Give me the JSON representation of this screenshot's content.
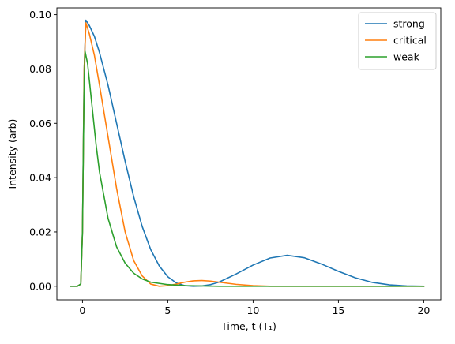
{
  "chart_data": {
    "type": "line",
    "xlabel": "Time, t (T₁)",
    "ylabel": "Intensity (arb)",
    "xlim": [
      -1.5,
      21.0
    ],
    "ylim": [
      -0.005,
      0.1025
    ],
    "xticks": [
      0,
      5,
      10,
      15,
      20
    ],
    "xtick_labels": [
      "0",
      "5",
      "10",
      "15",
      "20"
    ],
    "yticks": [
      0.0,
      0.02,
      0.04,
      0.06,
      0.08,
      0.1
    ],
    "ytick_labels": [
      "0.00",
      "0.02",
      "0.04",
      "0.06",
      "0.08",
      "0.10"
    ],
    "grid": false,
    "legend_position": "top-right",
    "series": [
      {
        "name": "strong",
        "color": "#1f77b4",
        "points": [
          [
            -0.7,
            0.0
          ],
          [
            -0.3,
            0.0
          ],
          [
            -0.1,
            0.0008
          ],
          [
            0.0,
            0.02
          ],
          [
            0.05,
            0.05
          ],
          [
            0.1,
            0.08
          ],
          [
            0.2,
            0.098
          ],
          [
            0.4,
            0.096
          ],
          [
            0.7,
            0.092
          ],
          [
            1.0,
            0.086
          ],
          [
            1.5,
            0.074
          ],
          [
            2.0,
            0.06
          ],
          [
            2.5,
            0.046
          ],
          [
            3.0,
            0.033
          ],
          [
            3.5,
            0.022
          ],
          [
            4.0,
            0.0135
          ],
          [
            4.5,
            0.0075
          ],
          [
            5.0,
            0.0035
          ],
          [
            5.5,
            0.0012
          ],
          [
            6.0,
            0.0002
          ],
          [
            6.5,
            0.0
          ],
          [
            7.0,
            0.0001
          ],
          [
            7.5,
            0.0006
          ],
          [
            8.0,
            0.0015
          ],
          [
            9.0,
            0.0045
          ],
          [
            10.0,
            0.0078
          ],
          [
            11.0,
            0.0104
          ],
          [
            12.0,
            0.0114
          ],
          [
            13.0,
            0.0105
          ],
          [
            14.0,
            0.0082
          ],
          [
            15.0,
            0.0055
          ],
          [
            16.0,
            0.0031
          ],
          [
            17.0,
            0.0014
          ],
          [
            18.0,
            0.0005
          ],
          [
            19.0,
            0.0001
          ],
          [
            20.0,
            0.0
          ]
        ]
      },
      {
        "name": "critical",
        "color": "#ff7f0e",
        "points": [
          [
            -0.7,
            0.0
          ],
          [
            -0.3,
            0.0
          ],
          [
            -0.1,
            0.0008
          ],
          [
            0.0,
            0.02
          ],
          [
            0.05,
            0.05
          ],
          [
            0.1,
            0.08
          ],
          [
            0.2,
            0.097
          ],
          [
            0.4,
            0.093
          ],
          [
            0.7,
            0.085
          ],
          [
            1.0,
            0.074
          ],
          [
            1.5,
            0.055
          ],
          [
            2.0,
            0.036
          ],
          [
            2.5,
            0.02
          ],
          [
            3.0,
            0.0095
          ],
          [
            3.5,
            0.0038
          ],
          [
            4.0,
            0.0008
          ],
          [
            4.5,
            0.0
          ],
          [
            5.0,
            0.0002
          ],
          [
            5.5,
            0.0008
          ],
          [
            6.0,
            0.0015
          ],
          [
            6.5,
            0.002
          ],
          [
            7.0,
            0.0021
          ],
          [
            7.5,
            0.0019
          ],
          [
            8.0,
            0.0015
          ],
          [
            9.0,
            0.0007
          ],
          [
            10.0,
            0.0002
          ],
          [
            11.0,
            0.0
          ],
          [
            20.0,
            0.0
          ]
        ]
      },
      {
        "name": "weak",
        "color": "#2ca02c",
        "points": [
          [
            -0.7,
            0.0
          ],
          [
            -0.3,
            0.0
          ],
          [
            -0.1,
            0.0008
          ],
          [
            0.0,
            0.02
          ],
          [
            0.05,
            0.05
          ],
          [
            0.1,
            0.075
          ],
          [
            0.15,
            0.0865
          ],
          [
            0.3,
            0.082
          ],
          [
            0.5,
            0.07
          ],
          [
            0.8,
            0.052
          ],
          [
            1.0,
            0.042
          ],
          [
            1.5,
            0.025
          ],
          [
            2.0,
            0.0145
          ],
          [
            2.5,
            0.0085
          ],
          [
            3.0,
            0.0048
          ],
          [
            3.5,
            0.0027
          ],
          [
            4.0,
            0.0015
          ],
          [
            5.0,
            0.0006
          ],
          [
            6.0,
            0.0002
          ],
          [
            7.0,
            0.0001
          ],
          [
            8.0,
            0.0
          ],
          [
            20.0,
            0.0
          ]
        ]
      }
    ]
  }
}
